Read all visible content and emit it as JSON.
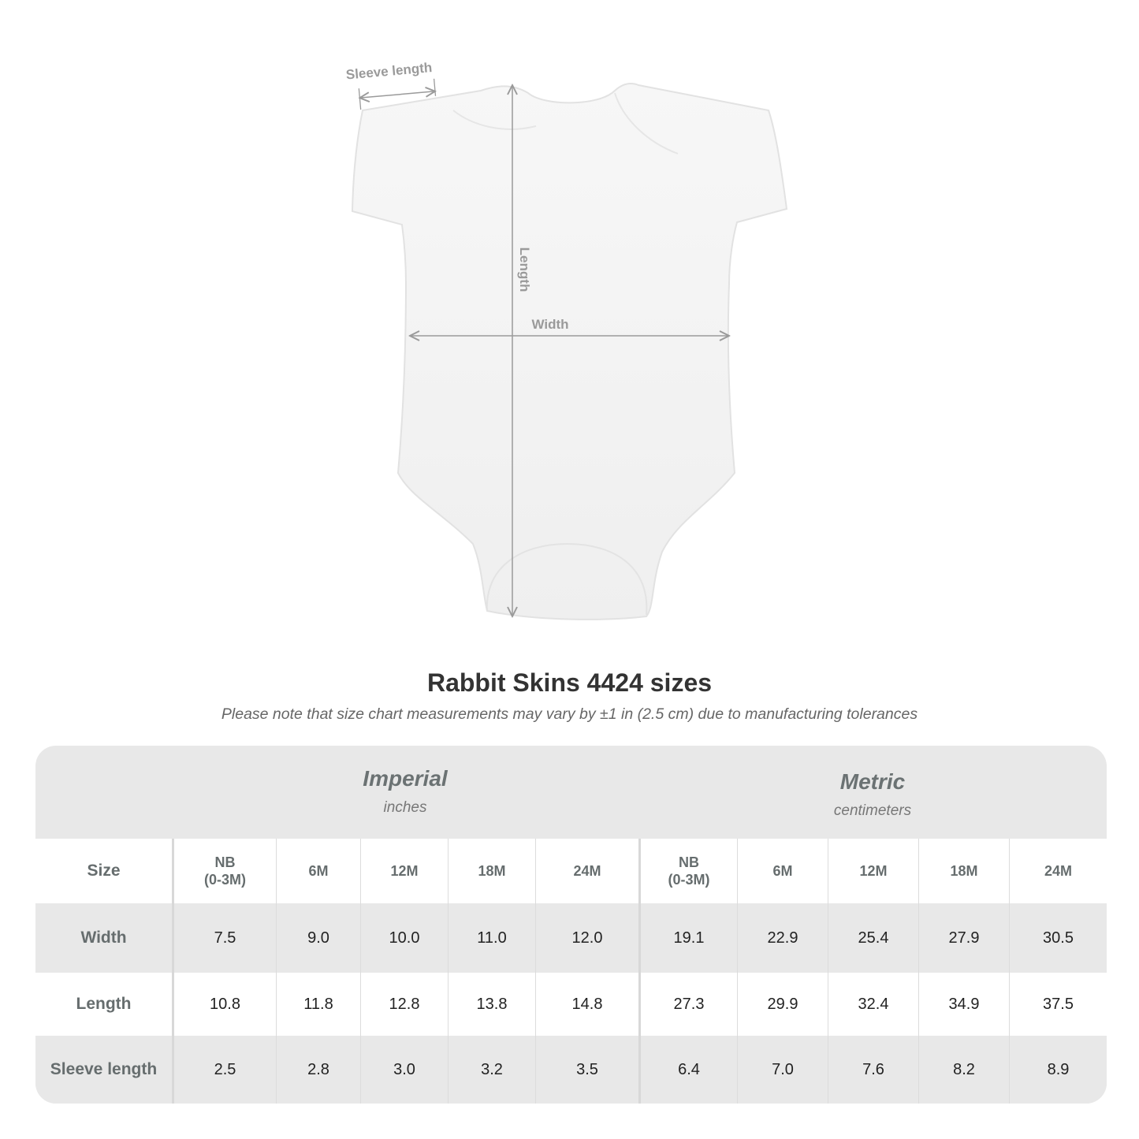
{
  "diagram": {
    "labels": {
      "sleeve": "Sleeve length",
      "length": "Length",
      "width": "Width"
    },
    "line_color": "#9a9a9a"
  },
  "title": "Rabbit Skins 4424 sizes",
  "note": "Please note that size chart measurements may vary by ±1 in (2.5 cm) due to manufacturing tolerances",
  "table": {
    "imperial": {
      "system": "Imperial",
      "unit": "inches"
    },
    "metric": {
      "system": "Metric",
      "unit": "centimeters"
    },
    "size_label": "Size",
    "imperial_sizes": [
      "NB\n(0-3M)",
      "6M",
      "12M",
      "18M",
      "24M"
    ],
    "metric_sizes": [
      "NB\n(0-3M)",
      "6M",
      "12M",
      "18M",
      "24M"
    ],
    "rows": [
      {
        "label": "Width",
        "imperial": [
          "7.5",
          "9.0",
          "10.0",
          "11.0",
          "12.0"
        ],
        "metric": [
          "19.1",
          "22.9",
          "25.4",
          "27.9",
          "30.5"
        ]
      },
      {
        "label": "Length",
        "imperial": [
          "10.8",
          "11.8",
          "12.8",
          "13.8",
          "14.8"
        ],
        "metric": [
          "27.3",
          "29.9",
          "32.4",
          "34.9",
          "37.5"
        ]
      },
      {
        "label": "Sleeve length",
        "imperial": [
          "2.5",
          "2.8",
          "3.0",
          "3.2",
          "3.5"
        ],
        "metric": [
          "6.4",
          "7.0",
          "7.6",
          "8.2",
          "8.9"
        ]
      }
    ]
  }
}
